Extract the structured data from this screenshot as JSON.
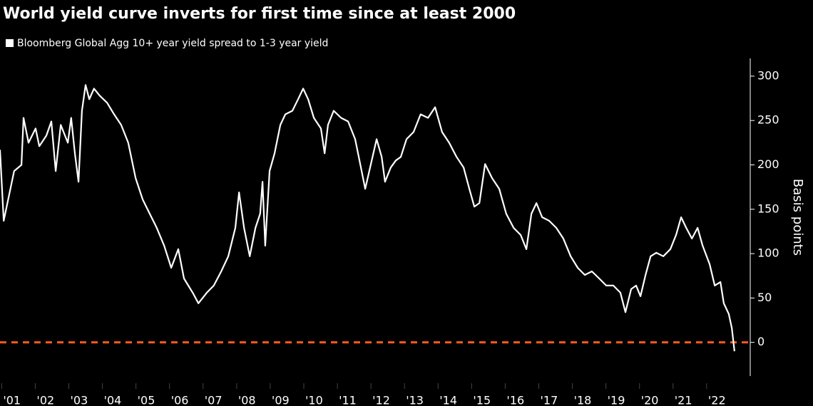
{
  "chart_data": {
    "type": "line",
    "title": "World yield curve inverts for first time since at least 2000",
    "y_label": "Basis points",
    "series": [
      {
        "name": "Bloomberg Global Agg 10+ year yield spread to 1-3 year yield",
        "color": "#ffffff",
        "x": [
          2000.95,
          2001.06,
          2001.37,
          2001.59,
          2001.65,
          2001.8,
          2002.01,
          2002.12,
          2002.33,
          2002.48,
          2002.61,
          2002.76,
          2002.97,
          2003.07,
          2003.18,
          2003.29,
          2003.39,
          2003.5,
          2003.61,
          2003.75,
          2003.92,
          2004.14,
          2004.35,
          2004.56,
          2004.77,
          2004.99,
          2005.2,
          2005.41,
          2005.62,
          2005.84,
          2006.05,
          2006.26,
          2006.43,
          2006.69,
          2006.86,
          2007.11,
          2007.32,
          2007.54,
          2007.75,
          2007.96,
          2008.07,
          2008.22,
          2008.39,
          2008.56,
          2008.7,
          2008.77,
          2008.85,
          2008.98,
          2009.13,
          2009.3,
          2009.45,
          2009.66,
          2009.83,
          2009.98,
          2010.13,
          2010.3,
          2010.51,
          2010.62,
          2010.72,
          2010.89,
          2011.11,
          2011.32,
          2011.53,
          2011.68,
          2011.83,
          2012.0,
          2012.17,
          2012.32,
          2012.42,
          2012.59,
          2012.74,
          2012.89,
          2013.06,
          2013.27,
          2013.48,
          2013.7,
          2013.91,
          2014.12,
          2014.33,
          2014.55,
          2014.76,
          2014.93,
          2015.08,
          2015.23,
          2015.4,
          2015.61,
          2015.82,
          2016.03,
          2016.25,
          2016.46,
          2016.63,
          2016.78,
          2016.93,
          2017.1,
          2017.31,
          2017.52,
          2017.73,
          2017.95,
          2018.16,
          2018.37,
          2018.58,
          2018.8,
          2019.01,
          2019.22,
          2019.43,
          2019.58,
          2019.75,
          2019.9,
          2020.03,
          2020.18,
          2020.33,
          2020.5,
          2020.71,
          2020.92,
          2021.09,
          2021.24,
          2021.39,
          2021.56,
          2021.73,
          2021.88,
          2022.09,
          2022.24,
          2022.41,
          2022.51,
          2022.66,
          2022.75,
          2022.83
        ],
        "values": [
          217,
          137,
          193,
          200,
          253,
          225,
          241,
          221,
          233,
          249,
          193,
          245,
          225,
          253,
          213,
          181,
          261,
          290,
          274,
          286,
          278,
          270,
          257,
          245,
          225,
          185,
          161,
          145,
          129,
          109,
          84,
          105,
          72,
          56,
          44,
          56,
          64,
          80,
          97,
          129,
          169,
          129,
          97,
          129,
          145,
          181,
          109,
          193,
          213,
          245,
          257,
          261,
          274,
          286,
          274,
          253,
          241,
          213,
          245,
          261,
          253,
          249,
          229,
          201,
          173,
          201,
          229,
          209,
          181,
          197,
          205,
          209,
          229,
          237,
          257,
          253,
          265,
          237,
          225,
          209,
          197,
          173,
          153,
          157,
          201,
          185,
          173,
          145,
          129,
          121,
          105,
          145,
          157,
          141,
          137,
          129,
          117,
          97,
          84,
          76,
          80,
          72,
          64,
          64,
          56,
          34,
          60,
          64,
          52,
          76,
          97,
          101,
          97,
          105,
          121,
          141,
          129,
          117,
          129,
          109,
          88,
          64,
          68,
          44,
          32,
          16,
          -10
        ]
      }
    ],
    "xlim": [
      2000.95,
      2023.15
    ],
    "ylim": [
      -38,
      320
    ],
    "xticks": [
      {
        "value": 2001,
        "label": "'01"
      },
      {
        "value": 2002,
        "label": "'02"
      },
      {
        "value": 2003,
        "label": "'03"
      },
      {
        "value": 2004,
        "label": "'04"
      },
      {
        "value": 2005,
        "label": "'05"
      },
      {
        "value": 2006,
        "label": "'06"
      },
      {
        "value": 2007,
        "label": "'07"
      },
      {
        "value": 2008,
        "label": "'08"
      },
      {
        "value": 2009,
        "label": "'09"
      },
      {
        "value": 2010,
        "label": "'10"
      },
      {
        "value": 2011,
        "label": "'11"
      },
      {
        "value": 2012,
        "label": "'12"
      },
      {
        "value": 2013,
        "label": "'13"
      },
      {
        "value": 2014,
        "label": "'14"
      },
      {
        "value": 2015,
        "label": "'15"
      },
      {
        "value": 2016,
        "label": "'16"
      },
      {
        "value": 2017,
        "label": "'17"
      },
      {
        "value": 2018,
        "label": "'18"
      },
      {
        "value": 2019,
        "label": "'19"
      },
      {
        "value": 2020,
        "label": "'20"
      },
      {
        "value": 2021,
        "label": "'21"
      },
      {
        "value": 2022,
        "label": "'22"
      }
    ],
    "yticks": [
      0,
      50,
      100,
      150,
      200,
      250,
      300
    ],
    "reference_line": {
      "value": 0,
      "color": "#ff5a1f"
    }
  }
}
